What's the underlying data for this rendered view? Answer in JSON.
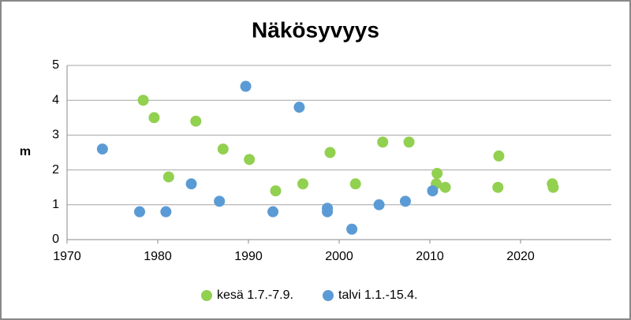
{
  "chart_data": {
    "type": "scatter",
    "title": "Näkösyvyys",
    "y_label": "m",
    "xlim": [
      1970,
      2030
    ],
    "xticks": [
      1970,
      1980,
      1990,
      2000,
      2010,
      2020
    ],
    "ylim": [
      0,
      5
    ],
    "yticks": [
      0,
      1,
      2,
      3,
      4,
      5
    ],
    "grid": true,
    "legend": "bottom",
    "series": [
      {
        "name": "kesä 1.7.-7.9.",
        "color": "#92d050",
        "x": [
          1978.4,
          1979.6,
          1981.2,
          1984.2,
          1987.2,
          1990.1,
          1993.0,
          1996.0,
          1999.0,
          2001.8,
          2004.8,
          2007.7,
          2010.8,
          2010.7,
          2011.7,
          2017.6,
          2017.5,
          2023.5,
          2023.6
        ],
        "values": [
          4.0,
          3.5,
          1.8,
          3.4,
          2.6,
          2.3,
          1.4,
          1.6,
          2.5,
          1.6,
          2.8,
          2.8,
          1.9,
          1.6,
          1.5,
          2.4,
          1.5,
          1.6,
          1.5
        ]
      },
      {
        "name": "talvi 1.1.-15.4.",
        "color": "#5b9bd5",
        "x": [
          1973.9,
          1978.0,
          1980.9,
          1983.7,
          1986.8,
          1989.7,
          1992.7,
          1995.6,
          1998.7,
          1998.7,
          2001.4,
          2004.4,
          2007.3,
          2010.3
        ],
        "values": [
          2.6,
          0.8,
          0.8,
          1.6,
          1.1,
          4.4,
          0.8,
          3.8,
          0.9,
          0.8,
          0.3,
          1.0,
          1.1,
          1.4
        ]
      }
    ]
  }
}
